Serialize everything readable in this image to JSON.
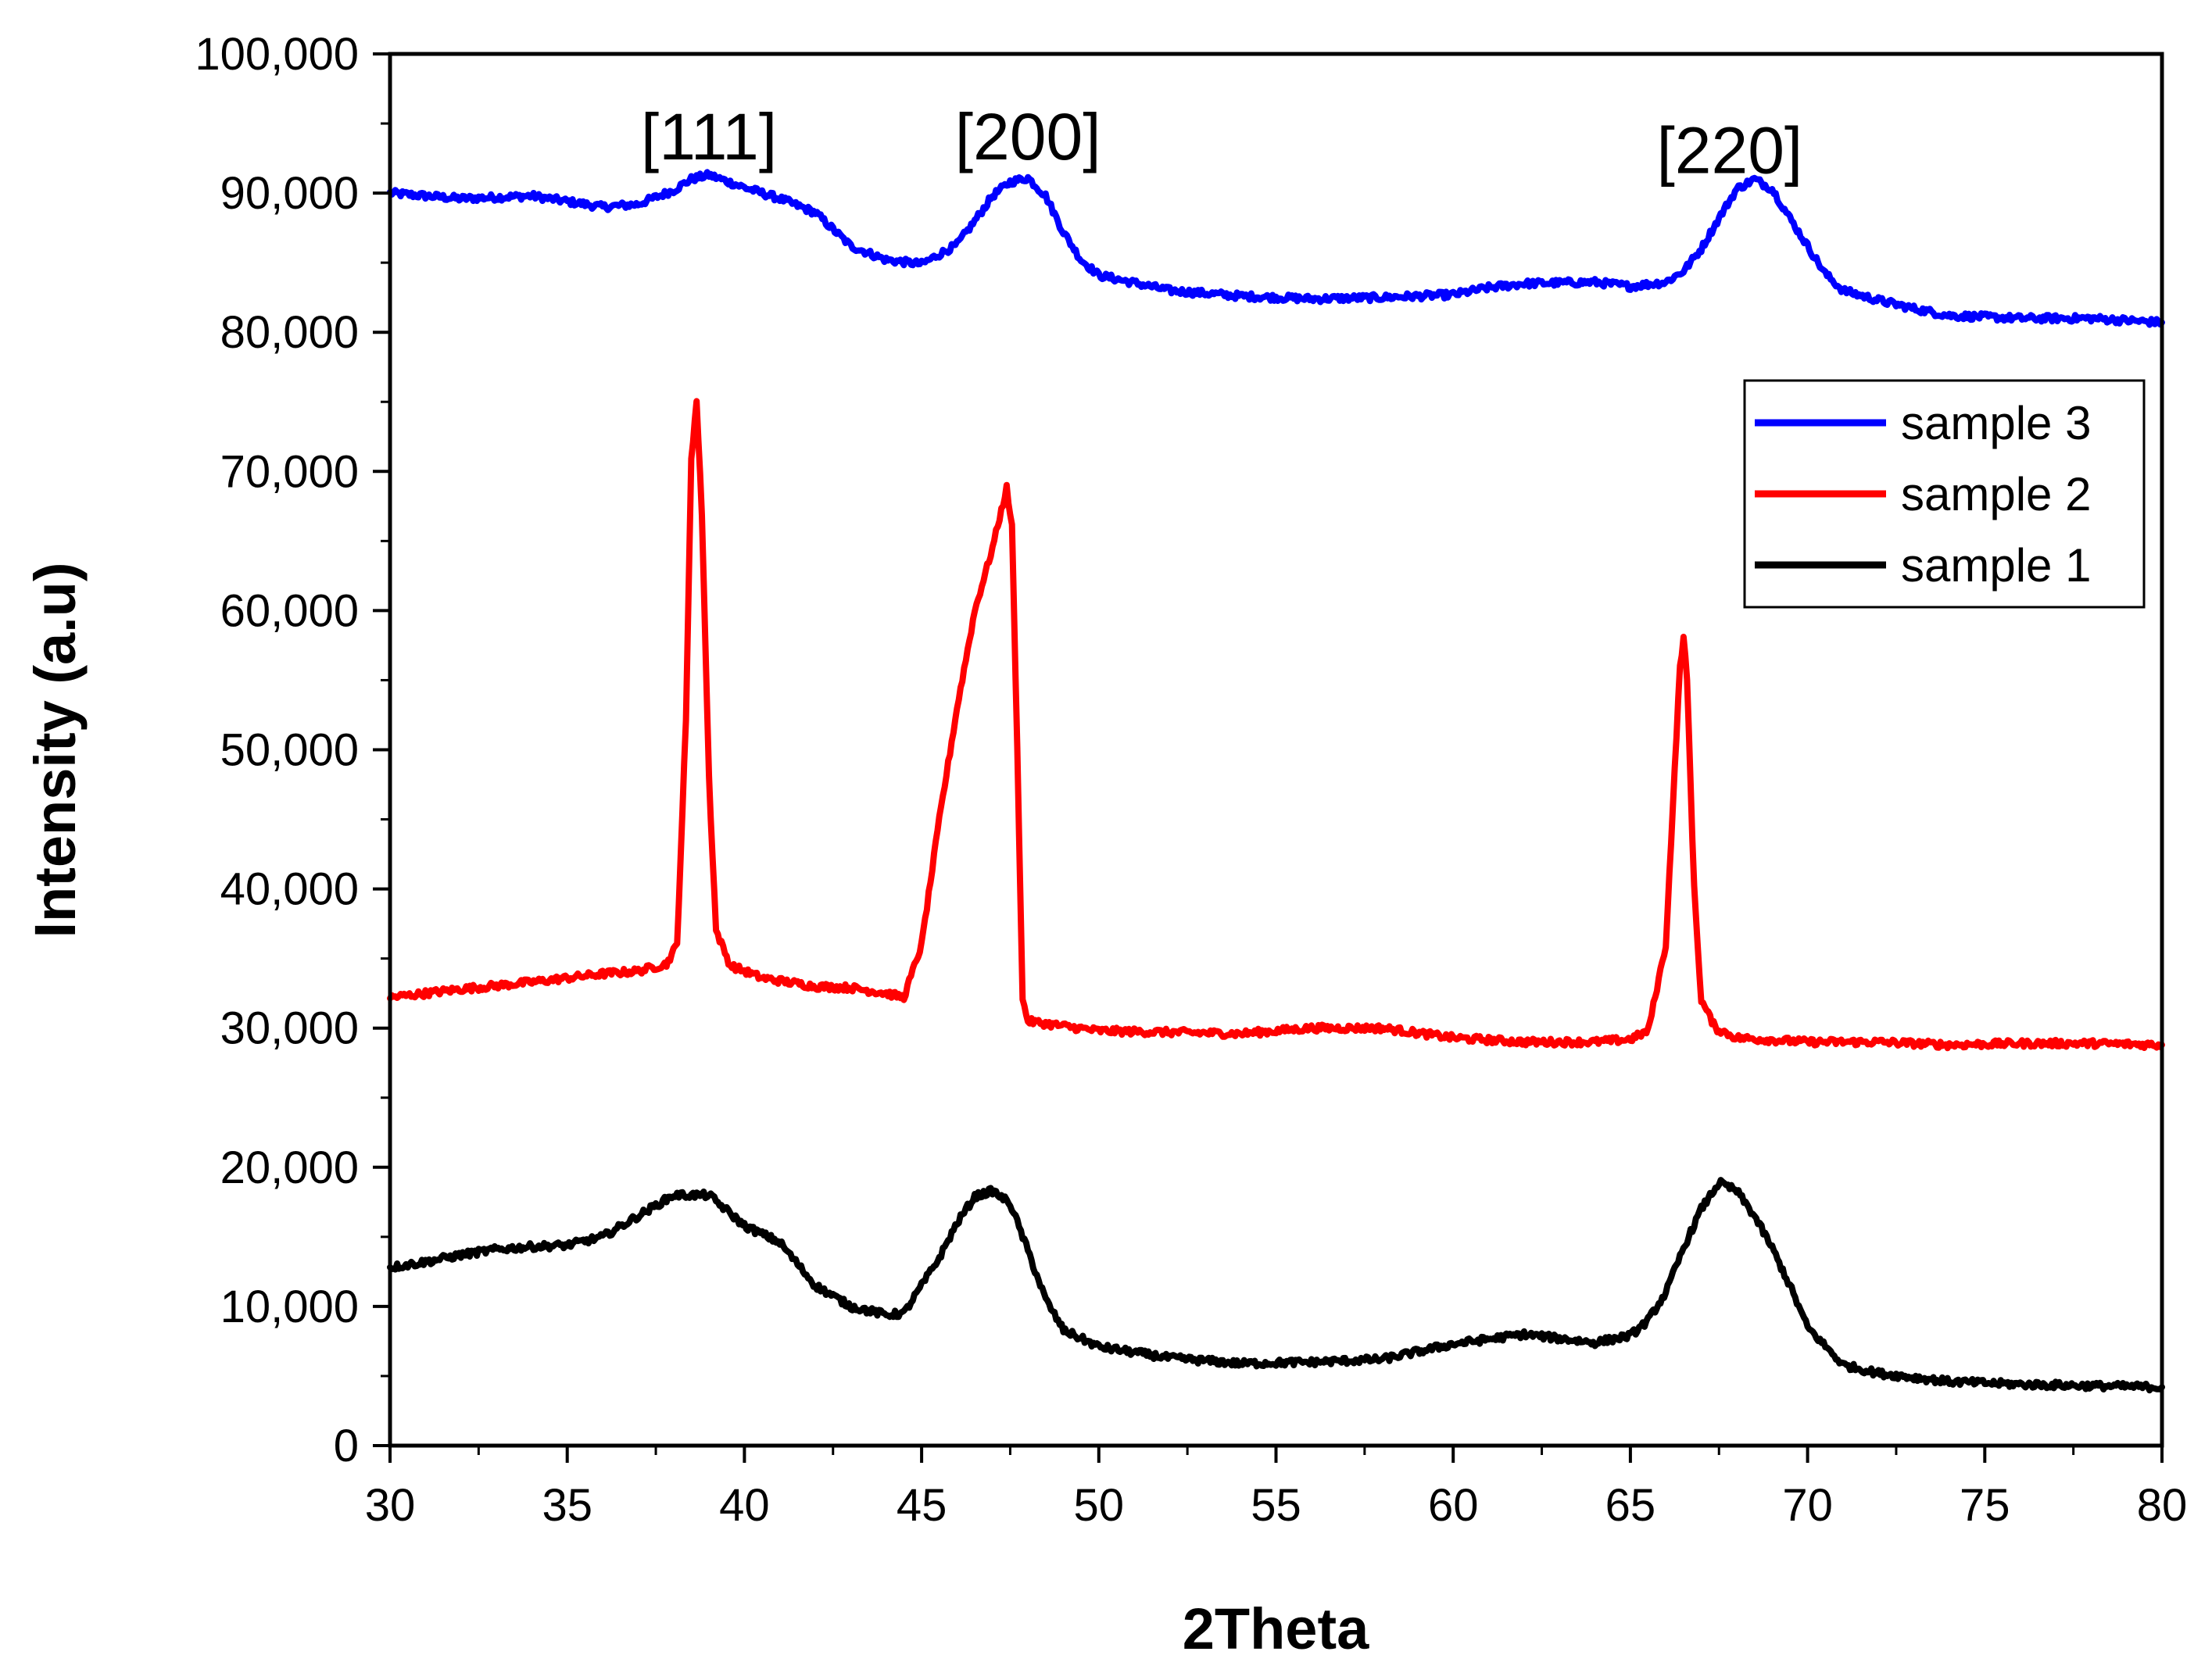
{
  "chart_data": {
    "type": "line",
    "xlabel": "2Theta",
    "ylabel": "Intensity (a.u)",
    "xlim": [
      30,
      80
    ],
    "ylim": [
      0,
      100000
    ],
    "xticks": [
      30,
      35,
      40,
      45,
      50,
      55,
      60,
      65,
      70,
      75,
      80
    ],
    "xtick_labels": [
      "30",
      "35",
      "40",
      "45",
      "50",
      "55",
      "60",
      "65",
      "70",
      "75",
      "80"
    ],
    "yticks": [
      0,
      10000,
      20000,
      30000,
      40000,
      50000,
      60000,
      70000,
      80000,
      90000,
      100000
    ],
    "ytick_labels": [
      "0",
      "10,000",
      "20,000",
      "30,000",
      "40,000",
      "50,000",
      "60,000",
      "70,000",
      "80,000",
      "90,000",
      "100,000"
    ],
    "annotations": [
      {
        "text": "[111]",
        "x": 39.0,
        "y": 94000
      },
      {
        "text": "[200]",
        "x": 48.0,
        "y": 94000
      },
      {
        "text": "[220]",
        "x": 67.8,
        "y": 93000
      }
    ],
    "legend": {
      "position": "right",
      "entries": [
        "sample 3",
        "sample 2",
        "sample 1"
      ]
    },
    "series": [
      {
        "name": "sample 3",
        "color": "#0000FF",
        "x": [
          30,
          32,
          34,
          35,
          36,
          37,
          38,
          38.5,
          39,
          40,
          41,
          42,
          43,
          44,
          45,
          46,
          46.5,
          47,
          47.5,
          48,
          48.5,
          49,
          49.5,
          50,
          52,
          54,
          56,
          58,
          60,
          61,
          62,
          64,
          65,
          66,
          66.5,
          67,
          67.5,
          68,
          68.5,
          69,
          69.5,
          70,
          70.5,
          71,
          72,
          73,
          74,
          76,
          78,
          80
        ],
        "y": [
          90000,
          89600,
          89800,
          89400,
          89000,
          89200,
          90200,
          91000,
          91300,
          90400,
          89600,
          88600,
          86200,
          85200,
          84900,
          86300,
          88000,
          89800,
          90800,
          91100,
          89800,
          87200,
          85200,
          84100,
          83000,
          82600,
          82400,
          82500,
          82700,
          83200,
          83500,
          83600,
          83300,
          83600,
          84400,
          86000,
          88200,
          90300,
          91000,
          90300,
          88200,
          86200,
          84200,
          83000,
          82300,
          81700,
          81200,
          81000,
          81000,
          80700
        ]
      },
      {
        "name": "sample 2",
        "color": "#FF0000",
        "x": [
          30,
          32,
          34,
          36,
          37,
          37.8,
          38.1,
          38.35,
          38.5,
          38.65,
          38.8,
          39,
          39.2,
          39.6,
          40.5,
          42,
          43,
          44,
          44.5,
          45,
          45.5,
          46,
          46.5,
          47,
          47.4,
          47.55,
          47.7,
          47.85,
          48,
          50,
          52,
          54,
          56,
          58,
          60,
          62,
          64,
          65,
          65.5,
          66,
          66.2,
          66.4,
          66.5,
          66.6,
          66.8,
          67,
          67.4,
          68,
          70,
          72,
          74,
          76,
          78,
          80
        ],
        "y": [
          32200,
          32800,
          33300,
          33900,
          34100,
          34600,
          36000,
          52000,
          71000,
          75000,
          67000,
          48000,
          37000,
          34500,
          33600,
          33000,
          32900,
          32500,
          32200,
          36000,
          45000,
          53000,
          60000,
          64500,
          68800,
          66000,
          50000,
          32000,
          30500,
          29800,
          29700,
          29600,
          30000,
          30000,
          29300,
          29000,
          29000,
          29200,
          29800,
          36000,
          46000,
          56000,
          58000,
          55000,
          40000,
          32000,
          30000,
          29300,
          29000,
          29000,
          28800,
          28900,
          28900,
          28800
        ]
      },
      {
        "name": "sample 1",
        "color": "#000000",
        "x": [
          30,
          31,
          32,
          33,
          34,
          35,
          36,
          37,
          38,
          39,
          40,
          41,
          42,
          43,
          44,
          44.5,
          45,
          45.5,
          46,
          46.5,
          47,
          47.5,
          48,
          48.5,
          49,
          50,
          52,
          54,
          56,
          58,
          60,
          62,
          64,
          65,
          65.5,
          66,
          66.5,
          67,
          67.5,
          68,
          68.5,
          69,
          69.5,
          70,
          71,
          72,
          74,
          76,
          78,
          80
        ],
        "y": [
          12800,
          13200,
          13700,
          14100,
          14300,
          14400,
          15000,
          16500,
          18000,
          18000,
          15800,
          14600,
          11500,
          10000,
          9400,
          9500,
          11500,
          13500,
          16000,
          17900,
          18300,
          17400,
          14000,
          10500,
          8300,
          7100,
          6300,
          5900,
          6000,
          6200,
          7300,
          8000,
          7400,
          7900,
          9000,
          11000,
          14200,
          17000,
          18900,
          18300,
          16500,
          14200,
          11500,
          8500,
          5800,
          5200,
          4600,
          4400,
          4300,
          4200
        ]
      }
    ]
  }
}
